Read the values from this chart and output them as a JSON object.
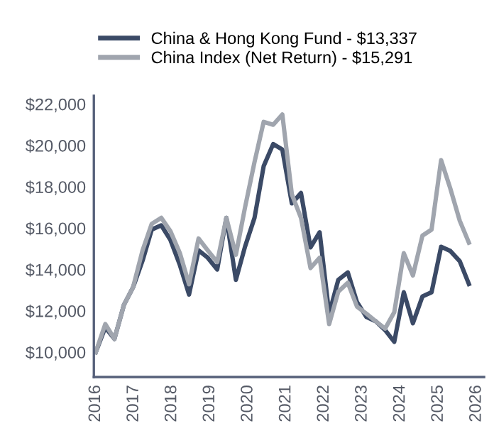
{
  "chart_data": {
    "type": "line",
    "series": [
      {
        "name": "China & Hong Kong Fund - $13,337",
        "color": "#3b4a66",
        "x": [
          2016.0,
          2016.25,
          2016.49,
          2016.74,
          2016.98,
          2017.23,
          2017.47,
          2017.72,
          2017.96,
          2018.21,
          2018.45,
          2018.7,
          2018.94,
          2019.19,
          2019.43,
          2019.68,
          2019.92,
          2020.17,
          2020.41,
          2020.66,
          2020.9,
          2021.15,
          2021.39,
          2021.64,
          2021.88,
          2022.13,
          2022.37,
          2022.62,
          2022.86,
          2023.11,
          2023.35,
          2023.6,
          2023.84,
          2024.09,
          2024.33,
          2024.58,
          2024.82,
          2025.07,
          2025.31,
          2025.56,
          2025.8
        ],
        "values": [
          10000,
          11200,
          10640,
          12290,
          13140,
          14430,
          15930,
          16140,
          15430,
          14210,
          12790,
          14930,
          14570,
          14000,
          16500,
          13500,
          15100,
          16500,
          19000,
          20070,
          19800,
          17200,
          17700,
          15070,
          15800,
          11860,
          13500,
          13860,
          12430,
          11700,
          11500,
          11070,
          10500,
          12900,
          11400,
          12700,
          12900,
          15100,
          14900,
          14400,
          13300
        ]
      },
      {
        "name": "China Index (Net Return) - $15,291",
        "color": "#a0a5ae",
        "x": [
          2016.0,
          2016.25,
          2016.49,
          2016.74,
          2016.98,
          2017.23,
          2017.47,
          2017.72,
          2017.96,
          2018.21,
          2018.45,
          2018.7,
          2018.94,
          2019.19,
          2019.43,
          2019.68,
          2019.92,
          2020.17,
          2020.41,
          2020.66,
          2020.9,
          2021.15,
          2021.39,
          2021.64,
          2021.88,
          2022.13,
          2022.37,
          2022.62,
          2022.86,
          2023.11,
          2023.35,
          2023.6,
          2023.84,
          2024.09,
          2024.33,
          2024.58,
          2024.82,
          2025.07,
          2025.31,
          2025.56,
          2025.8
        ],
        "values": [
          10000,
          11360,
          10640,
          12290,
          13140,
          14930,
          16210,
          16500,
          15860,
          14790,
          13290,
          15500,
          14930,
          14360,
          16500,
          14710,
          17000,
          19200,
          21140,
          21000,
          21500,
          17640,
          16500,
          14070,
          14570,
          11360,
          12930,
          13360,
          12210,
          11860,
          11500,
          11140,
          11930,
          14790,
          13710,
          15640,
          15930,
          19290,
          17930,
          16360,
          15300
        ]
      }
    ],
    "xlim": [
      2015.95,
      2026.2
    ],
    "xticks": [
      2016,
      2017,
      2018,
      2019,
      2020,
      2021,
      2022,
      2023,
      2024,
      2025,
      2026
    ],
    "ylim": [
      8800,
      22400
    ],
    "yticks": [
      {
        "value": 10000,
        "label": "$10,000"
      },
      {
        "value": 12000,
        "label": "$12,000"
      },
      {
        "value": 14000,
        "label": "$14,000"
      },
      {
        "value": 16000,
        "label": "$16,000"
      },
      {
        "value": 18000,
        "label": "$18,000"
      },
      {
        "value": 20000,
        "label": "$20,000"
      },
      {
        "value": 22000,
        "label": "$22,000"
      }
    ],
    "grid": false,
    "legend": "top left",
    "marker": "none",
    "line_style": "solid"
  }
}
